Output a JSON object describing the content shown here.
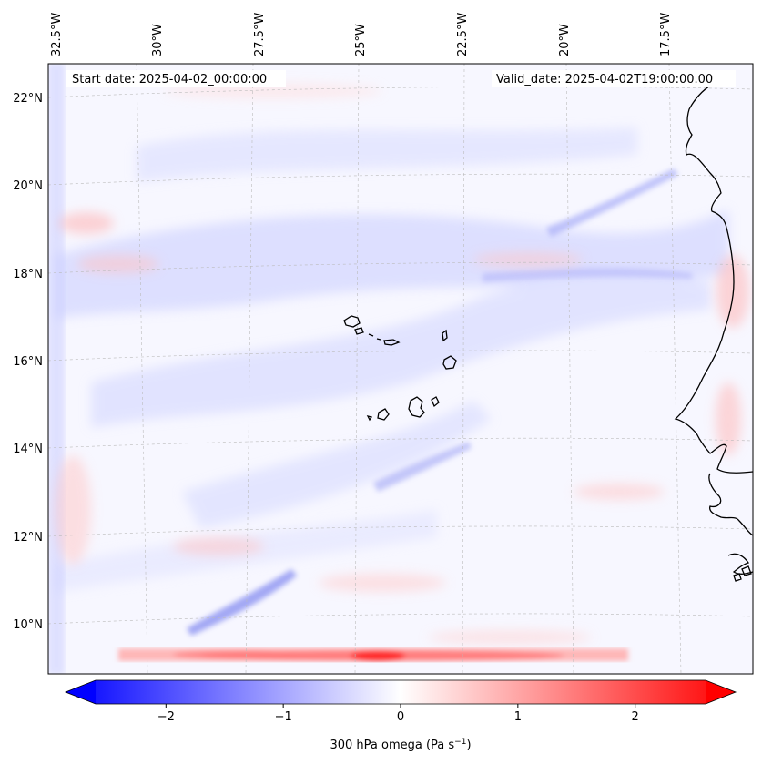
{
  "map": {
    "start_label": "Start date: 2025-04-02_00:00:00",
    "valid_label": "Valid_date: 2025-04-02T19:00:00.00",
    "lon_ticks": [
      "32.5°W",
      "30°W",
      "27.5°W",
      "25°W",
      "22.5°W",
      "20°W",
      "17.5°W"
    ],
    "lat_ticks": [
      "22°N",
      "20°N",
      "18°N",
      "16°N",
      "14°N",
      "12°N",
      "10°N"
    ],
    "gridlines": true
  },
  "colorbar": {
    "label": "300 hPa omega (Pa s",
    "label_sup": "−1",
    "label_end": ")",
    "ticks": [
      "−2",
      "−1",
      "0",
      "1",
      "2"
    ],
    "tick_values": [
      -2,
      -1,
      0,
      1,
      2
    ],
    "range": [
      -2.6,
      2.6
    ],
    "colormap": "bwr",
    "extend": "both"
  },
  "colors": {
    "negative": "#0000ff",
    "neutral": "#ffffff",
    "positive": "#ff0000",
    "coastline": "#000000"
  }
}
